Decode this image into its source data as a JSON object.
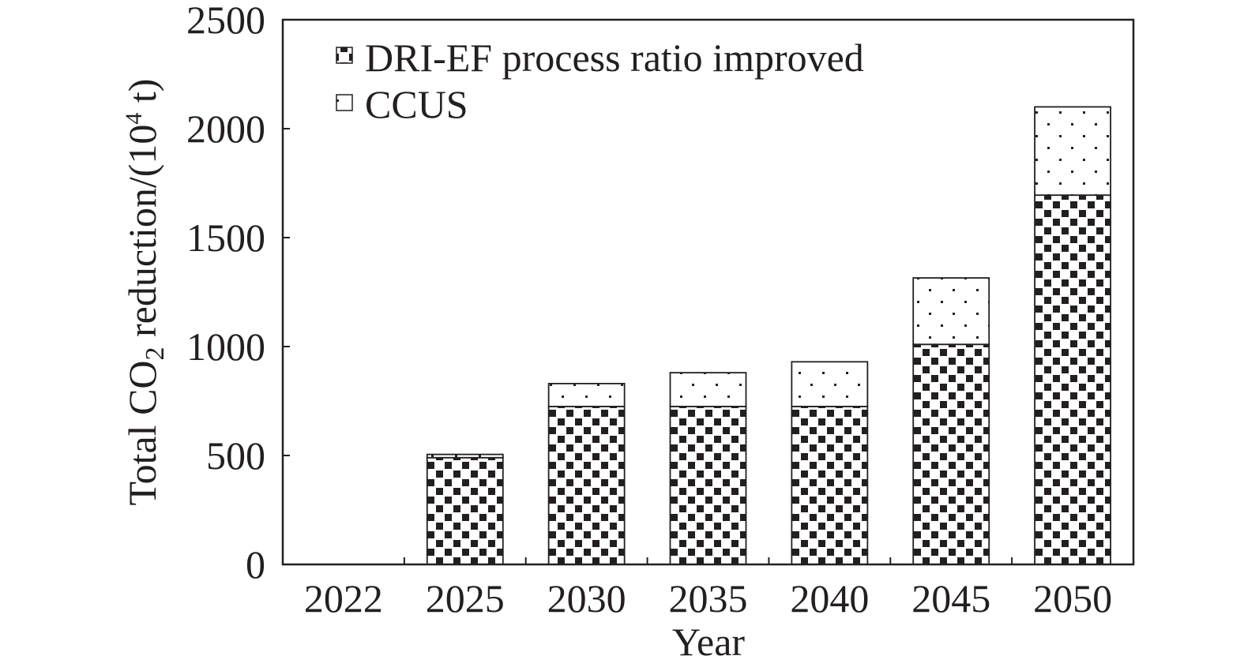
{
  "chart_data": {
    "type": "bar",
    "stacked": true,
    "categories": [
      "2022",
      "2025",
      "2030",
      "2035",
      "2040",
      "2045",
      "2050"
    ],
    "series": [
      {
        "name": "DRI-EF process ratio improved",
        "pattern": "checkerboard",
        "values": [
          0,
          490,
          725,
          725,
          725,
          1010,
          1695
        ]
      },
      {
        "name": "CCUS",
        "pattern": "dots",
        "values": [
          0,
          15,
          105,
          155,
          205,
          305,
          405
        ]
      }
    ],
    "xlabel": "Year",
    "ylabel": {
      "prefix": "Total CO",
      "sub": "2",
      "middle": " reduction/(10",
      "sup": "4",
      "suffix": " t)"
    },
    "ylim": [
      0,
      2500
    ],
    "yticks": [
      0,
      500,
      1000,
      1500,
      2000,
      2500
    ],
    "grid": false,
    "legend_position": "top-left",
    "colors": {
      "ink": "#231f20",
      "background": "#ffffff"
    }
  }
}
